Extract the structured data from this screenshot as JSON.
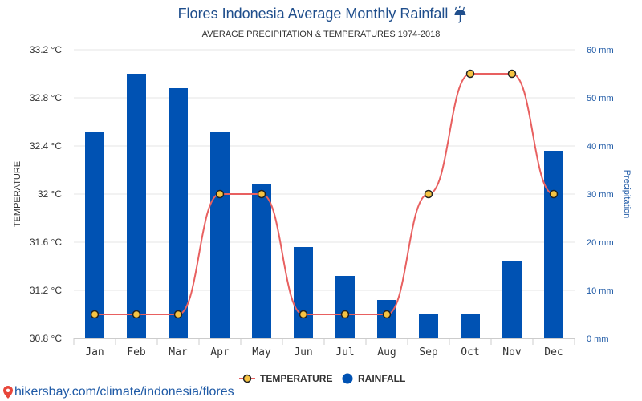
{
  "chart_data": {
    "type": "bar",
    "title": "Flores Indonesia Average Monthly Rainfall",
    "title_icon": "umbrella-rain-icon",
    "subtitle": "AVERAGE PRECIPITATION & TEMPERATURES 1974-2018",
    "categories": [
      "Jan",
      "Feb",
      "Mar",
      "Apr",
      "May",
      "Jun",
      "Jul",
      "Aug",
      "Sep",
      "Oct",
      "Nov",
      "Dec"
    ],
    "left_axis": {
      "label": "TEMPERATURE",
      "unit": "°C",
      "range": [
        30.8,
        33.2
      ],
      "ticks": [
        30.8,
        31.2,
        31.6,
        32,
        32.4,
        32.8,
        33.2
      ],
      "tick_labels": [
        "30.8 °C",
        "31.2 °C",
        "31.6 °C",
        "32 °C",
        "32.4 °C",
        "32.8 °C",
        "33.2 °C"
      ]
    },
    "right_axis": {
      "label": "Precipitation",
      "unit": "mm",
      "range": [
        0,
        60
      ],
      "ticks": [
        0,
        10,
        20,
        30,
        40,
        50,
        60
      ],
      "tick_labels": [
        "0 mm",
        "10 mm",
        "20 mm",
        "30 mm",
        "40 mm",
        "50 mm",
        "60 mm"
      ]
    },
    "series": [
      {
        "name": "RAINFALL",
        "type": "bar",
        "axis": "right",
        "color": "#0052b3",
        "values": [
          43,
          55,
          52,
          43,
          32,
          19,
          13,
          8,
          5,
          5,
          16,
          39
        ]
      },
      {
        "name": "TEMPERATURE",
        "type": "line",
        "axis": "left",
        "color": "#e86060",
        "marker_fill": "#f6c342",
        "values": [
          31,
          31,
          31,
          32,
          32,
          31,
          31,
          31,
          32,
          33,
          33,
          32
        ]
      }
    ],
    "grid": true,
    "legend": {
      "position": "bottom",
      "items": [
        {
          "label": "TEMPERATURE"
        },
        {
          "label": "RAINFALL"
        }
      ]
    }
  },
  "footer": {
    "url_text": "hikersbay.com/climate/indonesia/flores",
    "icon": "location-pin-icon",
    "color": "#1f5aa6"
  }
}
